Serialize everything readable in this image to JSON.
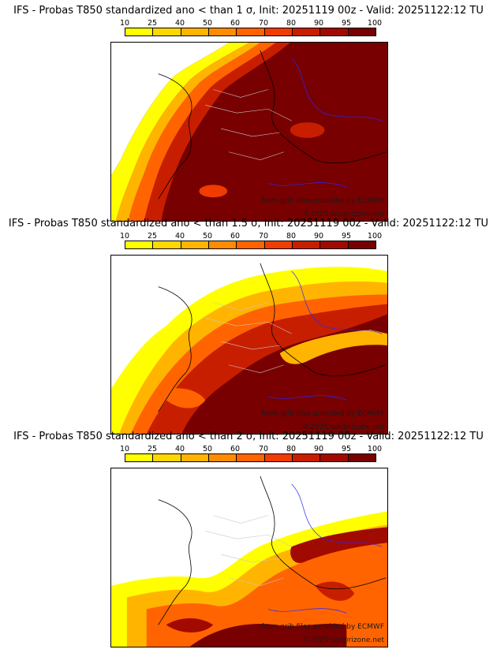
{
  "colors": {
    "c10": "#ffff00",
    "c25": "#ffd700",
    "c40": "#ffb400",
    "c50": "#ff8c00",
    "c60": "#ff6400",
    "c70": "#f03c00",
    "c80": "#c81e00",
    "c90": "#a00a00",
    "c95": "#780000",
    "border_country": "#000000",
    "border_region": "#c8c8c8",
    "rivers": "#2828ff"
  },
  "colorbar": {
    "ticks": [
      "10",
      "25",
      "40",
      "50",
      "60",
      "70",
      "80",
      "90",
      "95",
      "100"
    ]
  },
  "panels": [
    {
      "title": "IFS - Probas T850  standardized ano < than 1 σ, Init: 20251119 00z - Valid: 20251122:12 TU",
      "credit_line1": "from grib files provided by ECMWF",
      "credit_line2": "©2025 sat@rizone.net"
    },
    {
      "title": "IFS - Probas T850  standardized ano < than 1.5 σ, Init: 20251119 00z - Valid: 20251122:12 TU",
      "credit_line1": "from grib files provided by ECMWF",
      "credit_line2": "©2025 sat@rizone.net"
    },
    {
      "title": "IFS - Probas T850  standardized ano < than 2 σ, Init: 20251119 00z - Valid: 20251122:12 TU",
      "credit_line1": "from grib files provided by ECMWF",
      "credit_line2": "©2025 sat@rizone.net"
    }
  ]
}
